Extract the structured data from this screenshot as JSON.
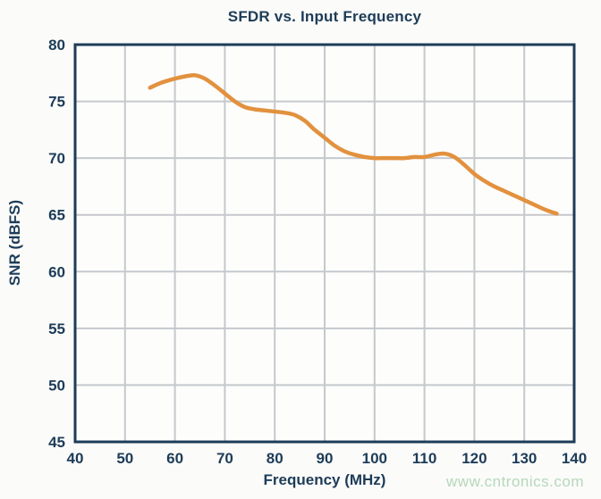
{
  "chart_data": {
    "type": "line",
    "title": "SFDR vs. Input Frequency",
    "xlabel": "Frequency (MHz)",
    "ylabel": "SNR (dBFS)",
    "xlim": [
      40,
      140
    ],
    "ylim": [
      45,
      80
    ],
    "x_ticks": [
      40,
      50,
      60,
      70,
      80,
      90,
      100,
      110,
      120,
      130,
      140
    ],
    "y_ticks": [
      45,
      50,
      55,
      60,
      65,
      70,
      75,
      80
    ],
    "grid": true,
    "legend": "none",
    "series": [
      {
        "name": "SNR",
        "x": [
          55,
          57,
          60,
          62,
          64,
          66,
          68,
          70,
          72,
          74,
          76,
          78,
          80,
          82,
          84,
          86,
          88,
          90,
          92,
          94,
          96,
          98,
          100,
          102,
          104,
          106,
          108,
          110,
          112,
          114,
          116,
          118,
          120,
          122,
          124,
          126,
          128,
          130,
          132,
          134,
          136.5
        ],
        "y": [
          76.2,
          76.6,
          77.0,
          77.2,
          77.3,
          77.0,
          76.4,
          75.7,
          75.0,
          74.5,
          74.3,
          74.2,
          74.1,
          74.0,
          73.8,
          73.3,
          72.5,
          71.8,
          71.1,
          70.6,
          70.3,
          70.1,
          70.0,
          70.0,
          70.0,
          70.0,
          70.1,
          70.1,
          70.3,
          70.4,
          70.1,
          69.4,
          68.6,
          68.0,
          67.5,
          67.1,
          66.7,
          66.3,
          65.9,
          65.5,
          65.1
        ]
      }
    ]
  },
  "watermark": {
    "text": "www.cntronics.com"
  },
  "colors": {
    "curve_orange": "#e2913e",
    "navy_text": "#1d3c58",
    "plot_border": "#1d3c58",
    "gridline": "#c5c8cd",
    "background": "#fbfbf9",
    "plot_background": "#fdfdfb",
    "watermark_green": "#b5d8bb"
  }
}
